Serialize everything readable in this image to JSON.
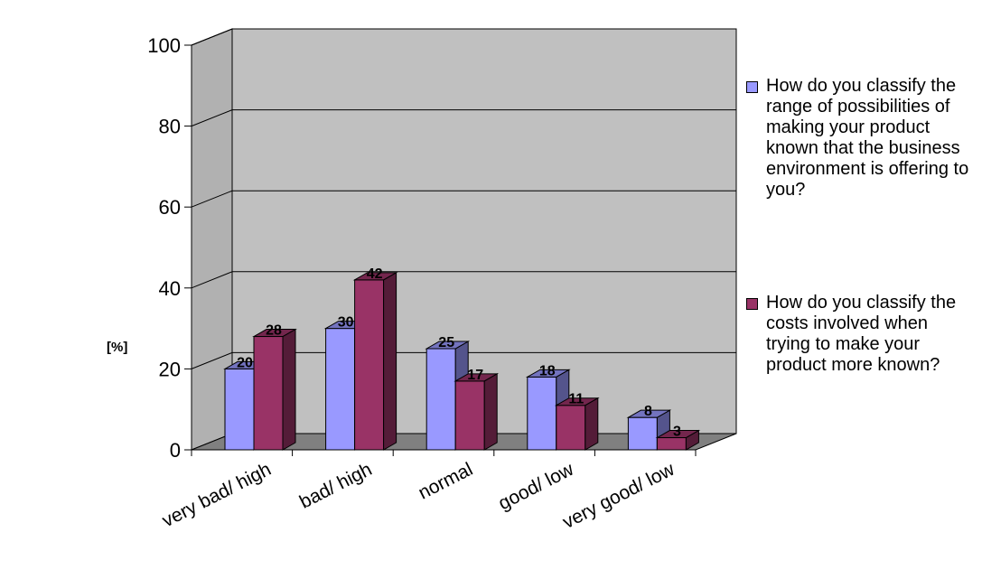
{
  "colors": {
    "series1": "#9999ff",
    "series2": "#993366",
    "wall": "#c0c0c0",
    "floor": "#808080"
  },
  "chart_data": {
    "type": "bar",
    "title": "",
    "xlabel": "",
    "ylabel": "[%]",
    "ylim": [
      0,
      100
    ],
    "yticks": [
      0,
      20,
      40,
      60,
      80,
      100
    ],
    "grid": true,
    "legend_position": "right",
    "categories": [
      "very bad/ high",
      "bad/ high",
      "normal",
      "good/ low",
      "very good/ low"
    ],
    "series": [
      {
        "name": "How do you classify the range of possibilities of making your product known that the business environment is offering to you?",
        "values": [
          20,
          30,
          25,
          18,
          8
        ]
      },
      {
        "name": "How do you classify the costs involved when trying to make your product more known?",
        "values": [
          28,
          42,
          17,
          11,
          3
        ]
      }
    ]
  }
}
